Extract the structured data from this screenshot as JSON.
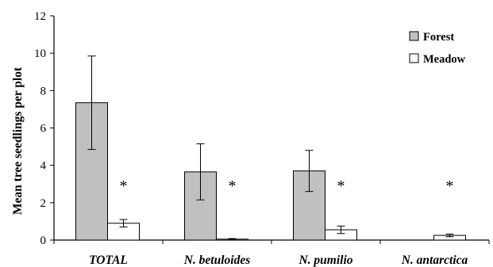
{
  "chart_data": {
    "type": "bar",
    "title": "",
    "xlabel": "",
    "ylabel": "Mean  tree seedlings per plot",
    "ylim": [
      0,
      12
    ],
    "yticks": [
      "0",
      "2",
      "4",
      "6",
      "8",
      "10",
      "12"
    ],
    "categories": [
      "TOTAL",
      "N. betuloides",
      "N. pumilio",
      "N. antarctica"
    ],
    "series": [
      {
        "name": "Forest",
        "color": "#c0c0c0",
        "values": [
          7.35,
          3.65,
          3.7,
          0
        ],
        "errors": [
          2.5,
          1.5,
          1.1,
          0
        ]
      },
      {
        "name": "Meadow",
        "color": "#ffffff",
        "values": [
          0.9,
          0.05,
          0.55,
          0.25
        ],
        "errors": [
          0.2,
          0.03,
          0.2,
          0.07
        ]
      }
    ],
    "significance": [
      "*",
      "*",
      "*",
      "*"
    ],
    "legend_position": "top-right",
    "grid": false
  }
}
